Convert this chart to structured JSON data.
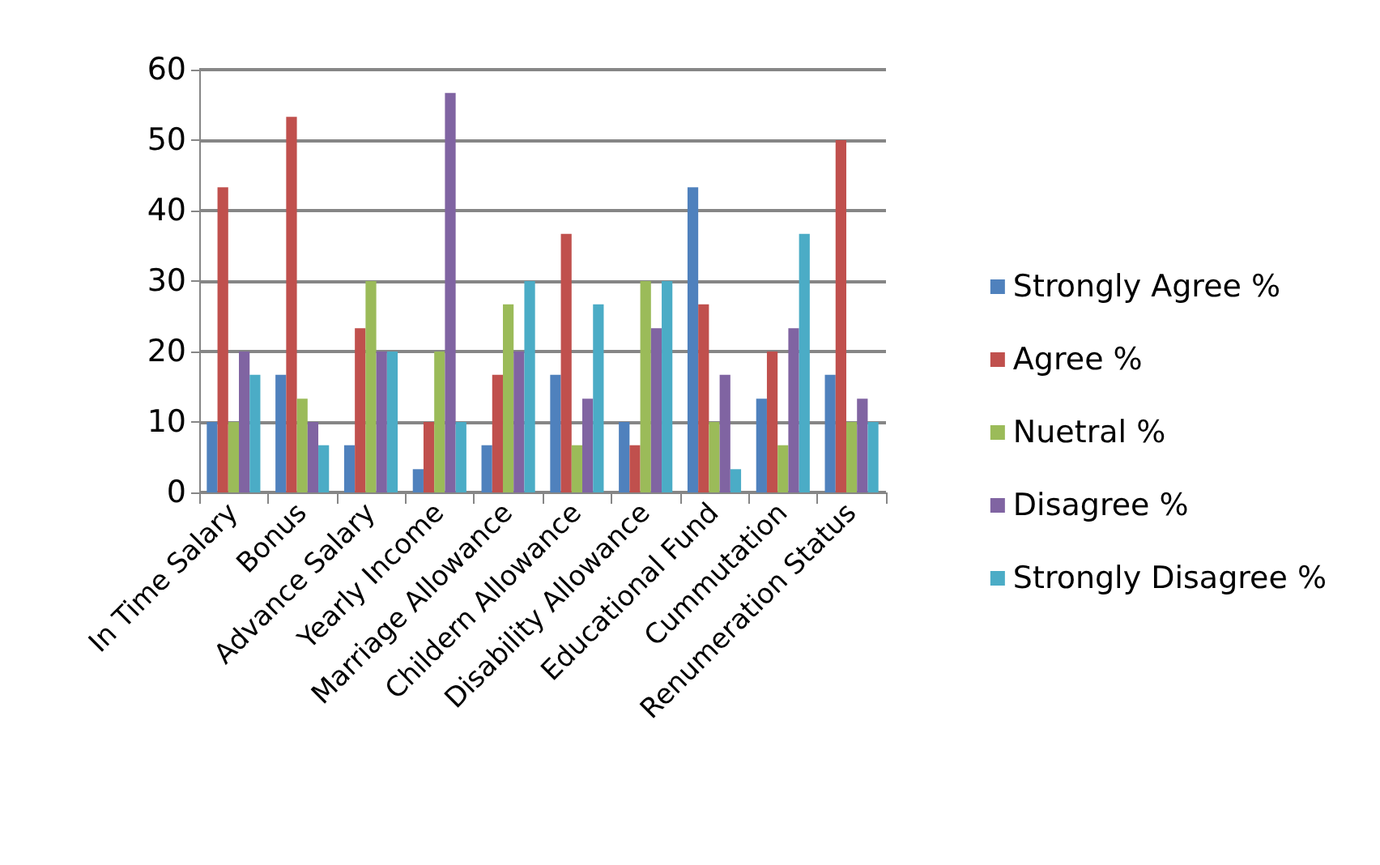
{
  "chart_data": {
    "type": "bar",
    "categories": [
      "In Time Salary",
      "Bonus",
      "Advance Salary",
      "Yearly Income",
      "Marriage Allowance",
      "Childern Allowance",
      "Disability Allowance",
      "Educational Fund",
      "Cummutation",
      "Renumeration Status"
    ],
    "series": [
      {
        "name": "Strongly Agree %",
        "color": "#4f81bd",
        "values": [
          10,
          16.7,
          6.7,
          3.3,
          6.7,
          16.7,
          10,
          43.3,
          13.3,
          16.7
        ]
      },
      {
        "name": "Agree %",
        "color": "#c0504d",
        "values": [
          43.3,
          53.3,
          23.3,
          10,
          16.7,
          36.7,
          6.7,
          26.7,
          20,
          50
        ]
      },
      {
        "name": "Nuetral %",
        "color": "#9bbb59",
        "values": [
          10,
          13.3,
          30,
          20,
          26.7,
          6.7,
          30,
          10,
          6.7,
          10
        ]
      },
      {
        "name": "Disagree %",
        "color": "#8064a2",
        "values": [
          20,
          10,
          20,
          56.7,
          20,
          13.3,
          23.3,
          16.7,
          23.3,
          13.3
        ]
      },
      {
        "name": "Strongly Disagree %",
        "color": "#4bacc6",
        "values": [
          16.7,
          6.7,
          20,
          10,
          30,
          26.7,
          30,
          3.3,
          36.7,
          10
        ]
      }
    ],
    "ylim": [
      0,
      60
    ],
    "yticks": [
      0,
      10,
      20,
      30,
      40,
      50,
      60
    ],
    "grid": "y",
    "legend": "right"
  }
}
